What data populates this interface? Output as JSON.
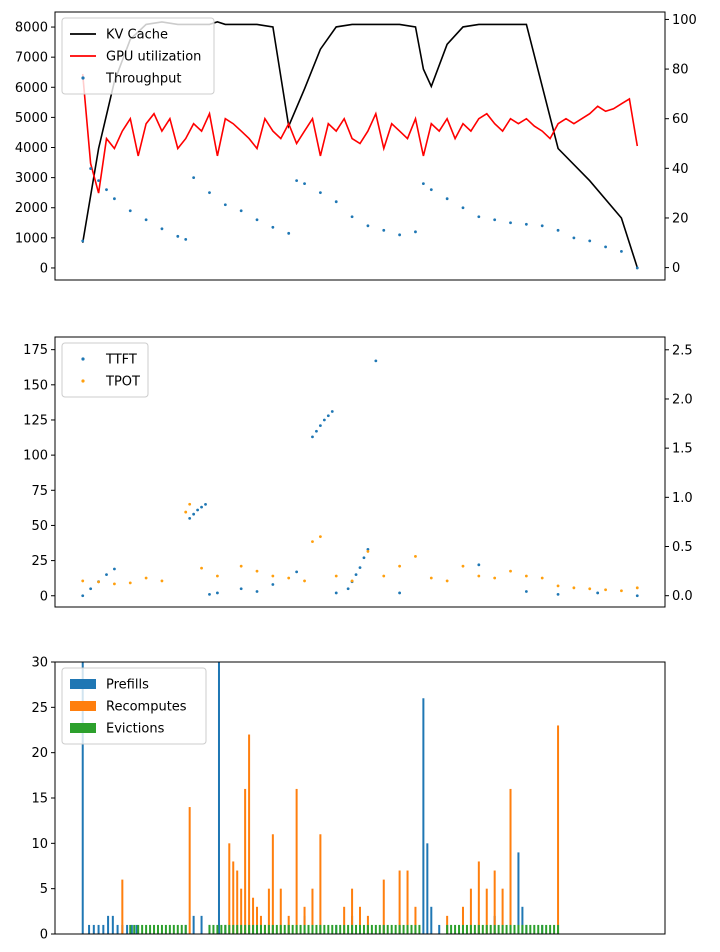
{
  "chart_data": [
    {
      "type": "line",
      "series": [
        {
          "name": "KV Cache",
          "axis": "y2",
          "color": "#000000",
          "style": "line",
          "x": [
            0,
            20,
            40,
            60,
            80,
            100,
            120,
            140,
            150,
            160,
            170,
            180,
            190,
            200,
            220,
            240,
            260,
            280,
            300,
            320,
            340,
            360,
            380,
            400,
            420,
            430,
            440,
            460,
            480,
            500,
            520,
            540,
            560,
            600,
            640,
            680,
            700
          ],
          "values": [
            10,
            48,
            75,
            92,
            98,
            99,
            98,
            98,
            98,
            98,
            99,
            98,
            98,
            98,
            98,
            97,
            57,
            72,
            88,
            97,
            98,
            98,
            98,
            98,
            97,
            80,
            73,
            90,
            97,
            98,
            98,
            98,
            98,
            48,
            35,
            20,
            0
          ]
        },
        {
          "name": "GPU utilization",
          "axis": "y2",
          "color": "#ff0000",
          "style": "line",
          "x": [
            0,
            10,
            20,
            30,
            40,
            50,
            60,
            70,
            80,
            90,
            100,
            110,
            120,
            130,
            140,
            150,
            160,
            170,
            180,
            190,
            200,
            210,
            220,
            230,
            240,
            250,
            260,
            270,
            280,
            290,
            300,
            310,
            320,
            330,
            340,
            350,
            360,
            370,
            380,
            390,
            400,
            410,
            420,
            430,
            440,
            450,
            460,
            470,
            480,
            490,
            500,
            510,
            520,
            530,
            540,
            550,
            560,
            570,
            580,
            590,
            600,
            610,
            620,
            630,
            640,
            650,
            660,
            670,
            680,
            690,
            700
          ],
          "values": [
            78,
            42,
            30,
            52,
            48,
            55,
            60,
            45,
            58,
            62,
            55,
            60,
            48,
            52,
            58,
            55,
            62,
            45,
            60,
            58,
            55,
            52,
            48,
            60,
            55,
            52,
            58,
            50,
            55,
            60,
            45,
            58,
            55,
            60,
            52,
            50,
            55,
            62,
            48,
            58,
            55,
            52,
            60,
            45,
            58,
            55,
            60,
            52,
            58,
            55,
            60,
            62,
            58,
            55,
            60,
            58,
            60,
            57,
            55,
            52,
            58,
            60,
            58,
            60,
            62,
            65,
            63,
            64,
            66,
            68,
            49
          ]
        },
        {
          "name": "Throughput",
          "axis": "y",
          "color": "#1f77b4",
          "style": "points",
          "x": [
            0,
            10,
            20,
            30,
            40,
            60,
            80,
            100,
            120,
            130,
            140,
            160,
            180,
            200,
            220,
            240,
            260,
            270,
            280,
            300,
            320,
            340,
            360,
            380,
            400,
            420,
            430,
            440,
            460,
            480,
            500,
            520,
            540,
            560,
            580,
            600,
            620,
            640,
            660,
            680,
            700
          ],
          "values": [
            900,
            3300,
            2900,
            2600,
            2300,
            1900,
            1600,
            1300,
            1050,
            950,
            3000,
            2500,
            2100,
            1900,
            1600,
            1350,
            1150,
            2900,
            2800,
            2500,
            2200,
            1700,
            1400,
            1250,
            1100,
            1200,
            2800,
            2600,
            2300,
            2000,
            1700,
            1600,
            1500,
            1450,
            1400,
            1250,
            1000,
            900,
            700,
            550,
            0
          ]
        }
      ],
      "y": {
        "ticks": [
          0,
          1000,
          2000,
          3000,
          4000,
          5000,
          6000,
          7000,
          8000
        ],
        "ylim": [
          -400,
          8500
        ]
      },
      "y2": {
        "ticks": [
          0,
          20,
          40,
          60,
          80,
          100
        ],
        "ylim": [
          -5,
          103
        ]
      },
      "xlim": [
        -35,
        735
      ],
      "legend": "top-left",
      "grid": false
    },
    {
      "type": "scatter",
      "series": [
        {
          "name": "TTFT",
          "axis": "y",
          "color": "#1f77b4",
          "x": [
            0,
            10,
            20,
            30,
            40,
            135,
            140,
            145,
            150,
            155,
            160,
            170,
            200,
            220,
            240,
            270,
            290,
            295,
            300,
            305,
            310,
            315,
            320,
            335,
            340,
            345,
            350,
            355,
            360,
            370,
            400,
            500,
            560,
            600,
            650,
            700
          ],
          "values": [
            0,
            5,
            10,
            15,
            19,
            55,
            58,
            61,
            63,
            65,
            1,
            2,
            5,
            3,
            8,
            17,
            113,
            117,
            121,
            125,
            128,
            131,
            2,
            5,
            10,
            15,
            20,
            27,
            33,
            167,
            2,
            22,
            3,
            1,
            2,
            0
          ]
        },
        {
          "name": "TPOT",
          "axis": "y2",
          "color": "#ff9f0e",
          "x": [
            0,
            20,
            40,
            60,
            80,
            100,
            130,
            135,
            150,
            170,
            200,
            220,
            240,
            260,
            280,
            290,
            300,
            320,
            340,
            360,
            380,
            400,
            420,
            440,
            460,
            480,
            500,
            520,
            540,
            560,
            580,
            600,
            620,
            640,
            660,
            680,
            700
          ],
          "values": [
            0.15,
            0.14,
            0.12,
            0.13,
            0.18,
            0.15,
            0.85,
            0.93,
            0.28,
            0.2,
            0.3,
            0.25,
            0.2,
            0.18,
            0.15,
            0.55,
            0.6,
            0.2,
            0.15,
            0.45,
            0.2,
            0.3,
            0.4,
            0.18,
            0.15,
            0.3,
            0.2,
            0.18,
            0.25,
            0.2,
            0.18,
            0.1,
            0.08,
            0.07,
            0.06,
            0.05,
            0.08
          ]
        }
      ],
      "y": {
        "ticks": [
          0,
          25,
          50,
          75,
          100,
          125,
          150,
          175
        ],
        "ylim": [
          -8,
          184
        ]
      },
      "y2": {
        "ticks": [
          0.0,
          0.5,
          1.0,
          1.5,
          2.0,
          2.5
        ],
        "ylim": [
          -0.115,
          2.63
        ]
      },
      "xlim": [
        -35,
        735
      ],
      "legend": "top-left",
      "grid": false
    },
    {
      "type": "bar",
      "series": [
        {
          "name": "Prefills",
          "color": "#1f77b4",
          "x": [
            0,
            8,
            14,
            20,
            26,
            32,
            38,
            44,
            50,
            56,
            62,
            68,
            130,
            140,
            150,
            160,
            172,
            180,
            210,
            215,
            240,
            260,
            280,
            300,
            320,
            340,
            360,
            380,
            400,
            420,
            430,
            435,
            440,
            450,
            460,
            480,
            500,
            520,
            540,
            550,
            555,
            560,
            580
          ],
          "values": [
            30,
            1,
            1,
            1,
            1,
            2,
            2,
            1,
            1,
            1,
            1,
            1,
            1,
            2,
            2,
            1,
            30,
            1,
            1,
            1,
            1,
            1,
            2,
            1,
            1,
            2,
            1,
            1,
            1,
            1,
            26,
            10,
            3,
            1,
            1,
            1,
            1,
            2,
            1,
            9,
            3,
            1,
            1
          ]
        },
        {
          "name": "Recomputes",
          "color": "#ff7f0e",
          "x": [
            50,
            135,
            185,
            190,
            195,
            200,
            205,
            210,
            215,
            220,
            225,
            230,
            235,
            240,
            250,
            260,
            270,
            280,
            290,
            300,
            330,
            340,
            350,
            360,
            380,
            400,
            410,
            420,
            460,
            480,
            490,
            500,
            510,
            520,
            530,
            540,
            600
          ],
          "values": [
            6,
            14,
            10,
            8,
            7,
            5,
            16,
            22,
            4,
            3,
            2,
            1,
            5,
            11,
            5,
            2,
            16,
            3,
            5,
            11,
            3,
            5,
            3,
            2,
            6,
            7,
            7,
            3,
            2,
            3,
            5,
            8,
            5,
            7,
            5,
            16,
            23
          ]
        },
        {
          "name": "Evictions",
          "color": "#2ca02c",
          "x": [
            60,
            65,
            70,
            75,
            80,
            85,
            90,
            95,
            100,
            105,
            110,
            115,
            120,
            125,
            130,
            160,
            165,
            170,
            175,
            180,
            185,
            190,
            195,
            200,
            205,
            210,
            215,
            220,
            225,
            230,
            235,
            240,
            245,
            250,
            255,
            260,
            265,
            270,
            275,
            280,
            285,
            290,
            295,
            300,
            305,
            310,
            315,
            320,
            325,
            330,
            335,
            340,
            345,
            350,
            355,
            360,
            365,
            370,
            375,
            380,
            385,
            390,
            395,
            400,
            405,
            410,
            415,
            420,
            425,
            460,
            465,
            470,
            475,
            480,
            485,
            490,
            495,
            500,
            505,
            510,
            515,
            520,
            525,
            530,
            535,
            540,
            545,
            550,
            555,
            560,
            565,
            570,
            575,
            580,
            585,
            590,
            595,
            600
          ],
          "values": [
            1,
            1,
            1,
            1,
            1,
            1,
            1,
            1,
            1,
            1,
            1,
            1,
            1,
            1,
            1,
            1,
            1,
            1,
            1,
            1,
            1,
            1,
            1,
            1,
            1,
            1,
            1,
            1,
            1,
            1,
            1,
            1,
            1,
            1,
            1,
            1,
            1,
            1,
            1,
            1,
            1,
            1,
            1,
            1,
            1,
            1,
            1,
            1,
            1,
            1,
            1,
            1,
            1,
            1,
            1,
            1,
            1,
            1,
            1,
            1,
            1,
            1,
            1,
            1,
            1,
            1,
            1,
            1,
            1,
            1,
            1,
            1,
            1,
            1,
            1,
            1,
            1,
            1,
            1,
            1,
            1,
            1,
            1,
            1,
            1,
            1,
            1,
            1,
            1,
            1,
            1,
            1,
            1,
            1,
            1,
            1,
            1,
            1
          ]
        }
      ],
      "y": {
        "ticks": [
          0,
          5,
          10,
          15,
          20,
          25,
          30
        ],
        "ylim": [
          0,
          30
        ]
      },
      "xlim": [
        -35,
        735
      ],
      "legend": "top-left",
      "grid": false
    }
  ]
}
